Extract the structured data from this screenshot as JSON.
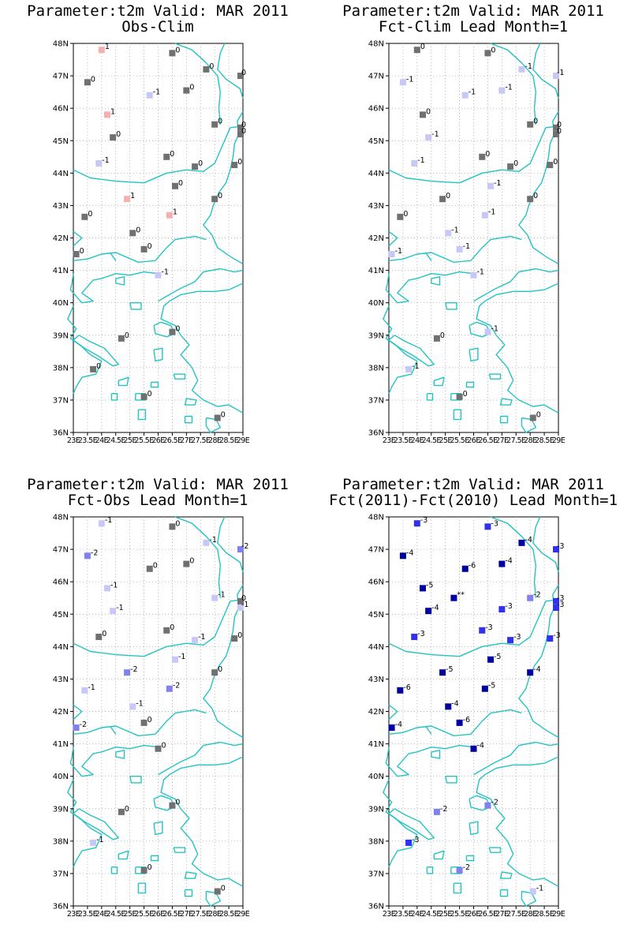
{
  "figure": {
    "axes": {
      "lat_labels": [
        "48N",
        "47N",
        "46N",
        "45N",
        "44N",
        "43N",
        "42N",
        "41N",
        "40N",
        "39N",
        "38N",
        "37N",
        "36N"
      ],
      "lon_labels": [
        "23E",
        "23.5E",
        "24E",
        "24.5E",
        "25E",
        "25.5E",
        "26E",
        "26.5E",
        "27E",
        "27.5E",
        "28E",
        "28.5E",
        "29E"
      ],
      "lat_range": [
        36,
        48
      ],
      "lon_range": [
        23,
        29
      ],
      "grid": "dotted"
    },
    "colors": {
      "coast": "#22c4c4",
      "grid": "#9a9a9a",
      "zero": "#707070",
      "plus1": "#f5b0b0",
      "minus1": "#c8c8f8",
      "minus2": "#8080f0",
      "minus3": "#3030f0",
      "minus4plus": "#0000a0",
      "plus2": "#7070e8",
      "plus3": "#3030f0",
      "missing": "#0000a0"
    },
    "panels": [
      {
        "title_line1": "Parameter:t2m Valid: MAR 2011",
        "title_line2": "Obs-Clim",
        "stations": [
          {
            "lon": 24.0,
            "lat": 47.8,
            "label": "1",
            "cls": "plus1"
          },
          {
            "lon": 26.5,
            "lat": 47.7,
            "label": "0",
            "cls": "zero"
          },
          {
            "lon": 27.7,
            "lat": 47.2,
            "label": "0",
            "cls": "zero"
          },
          {
            "lon": 29.0,
            "lat": 47.0,
            "label": "0",
            "cls": "zero"
          },
          {
            "lon": 23.5,
            "lat": 46.8,
            "label": "0",
            "cls": "zero"
          },
          {
            "lon": 27.0,
            "lat": 46.55,
            "label": "0",
            "cls": "zero"
          },
          {
            "lon": 25.7,
            "lat": 46.4,
            "label": "-1",
            "cls": "minus1"
          },
          {
            "lon": 24.2,
            "lat": 45.8,
            "label": "1",
            "cls": "plus1"
          },
          {
            "lon": 28.0,
            "lat": 45.5,
            "label": "0",
            "cls": "zero"
          },
          {
            "lon": 29.0,
            "lat": 45.4,
            "label": "0",
            "cls": "zero"
          },
          {
            "lon": 29.0,
            "lat": 45.2,
            "label": "0",
            "cls": "zero"
          },
          {
            "lon": 24.4,
            "lat": 45.1,
            "label": "0",
            "cls": "zero"
          },
          {
            "lon": 26.3,
            "lat": 44.5,
            "label": "0",
            "cls": "zero"
          },
          {
            "lon": 23.9,
            "lat": 44.3,
            "label": "-1",
            "cls": "minus1"
          },
          {
            "lon": 27.3,
            "lat": 44.2,
            "label": "0",
            "cls": "zero"
          },
          {
            "lon": 28.7,
            "lat": 44.25,
            "label": "0",
            "cls": "zero"
          },
          {
            "lon": 26.6,
            "lat": 43.6,
            "label": "0",
            "cls": "zero"
          },
          {
            "lon": 28.0,
            "lat": 43.2,
            "label": "0",
            "cls": "zero"
          },
          {
            "lon": 24.9,
            "lat": 43.2,
            "label": "1",
            "cls": "plus1"
          },
          {
            "lon": 23.4,
            "lat": 42.65,
            "label": "0",
            "cls": "zero"
          },
          {
            "lon": 26.4,
            "lat": 42.7,
            "label": "1",
            "cls": "plus1"
          },
          {
            "lon": 25.1,
            "lat": 42.15,
            "label": "0",
            "cls": "zero"
          },
          {
            "lon": 25.5,
            "lat": 41.65,
            "label": "0",
            "cls": "zero"
          },
          {
            "lon": 23.1,
            "lat": 41.5,
            "label": "0",
            "cls": "zero"
          },
          {
            "lon": 26.0,
            "lat": 40.85,
            "label": "-1",
            "cls": "minus1"
          },
          {
            "lon": 24.7,
            "lat": 38.9,
            "label": "0",
            "cls": "zero"
          },
          {
            "lon": 26.5,
            "lat": 39.1,
            "label": "0",
            "cls": "zero"
          },
          {
            "lon": 23.7,
            "lat": 37.95,
            "label": "0",
            "cls": "zero"
          },
          {
            "lon": 25.5,
            "lat": 37.1,
            "label": "0",
            "cls": "zero"
          },
          {
            "lon": 28.1,
            "lat": 36.45,
            "label": "0",
            "cls": "zero"
          }
        ]
      },
      {
        "title_line1": "Parameter:t2m Valid: MAR 2011",
        "title_line2": "Fct-Clim Lead Month=1",
        "stations": [
          {
            "lon": 24.0,
            "lat": 47.8,
            "label": "0",
            "cls": "zero"
          },
          {
            "lon": 26.5,
            "lat": 47.7,
            "label": "0",
            "cls": "zero"
          },
          {
            "lon": 27.7,
            "lat": 47.2,
            "label": "-1",
            "cls": "minus1"
          },
          {
            "lon": 29.0,
            "lat": 47.0,
            "label": "-1",
            "cls": "minus1"
          },
          {
            "lon": 23.5,
            "lat": 46.8,
            "label": "-1",
            "cls": "minus1"
          },
          {
            "lon": 27.0,
            "lat": 46.55,
            "label": "-1",
            "cls": "minus1"
          },
          {
            "lon": 25.7,
            "lat": 46.4,
            "label": "-1",
            "cls": "minus1"
          },
          {
            "lon": 24.2,
            "lat": 45.8,
            "label": "0",
            "cls": "zero"
          },
          {
            "lon": 28.0,
            "lat": 45.5,
            "label": "0",
            "cls": "zero"
          },
          {
            "lon": 29.0,
            "lat": 45.4,
            "label": "0",
            "cls": "zero"
          },
          {
            "lon": 29.0,
            "lat": 45.2,
            "label": "0",
            "cls": "zero"
          },
          {
            "lon": 24.4,
            "lat": 45.1,
            "label": "-1",
            "cls": "minus1"
          },
          {
            "lon": 26.3,
            "lat": 44.5,
            "label": "0",
            "cls": "zero"
          },
          {
            "lon": 23.9,
            "lat": 44.3,
            "label": "-1",
            "cls": "minus1"
          },
          {
            "lon": 27.3,
            "lat": 44.2,
            "label": "0",
            "cls": "zero"
          },
          {
            "lon": 28.7,
            "lat": 44.25,
            "label": "0",
            "cls": "zero"
          },
          {
            "lon": 26.6,
            "lat": 43.6,
            "label": "-1",
            "cls": "minus1"
          },
          {
            "lon": 28.0,
            "lat": 43.2,
            "label": "0",
            "cls": "zero"
          },
          {
            "lon": 24.9,
            "lat": 43.2,
            "label": "0",
            "cls": "zero"
          },
          {
            "lon": 23.4,
            "lat": 42.65,
            "label": "0",
            "cls": "zero"
          },
          {
            "lon": 26.4,
            "lat": 42.7,
            "label": "-1",
            "cls": "minus1"
          },
          {
            "lon": 25.1,
            "lat": 42.15,
            "label": "-1",
            "cls": "minus1"
          },
          {
            "lon": 25.5,
            "lat": 41.65,
            "label": "-1",
            "cls": "minus1"
          },
          {
            "lon": 23.1,
            "lat": 41.5,
            "label": "-1",
            "cls": "minus1"
          },
          {
            "lon": 26.0,
            "lat": 40.85,
            "label": "-1",
            "cls": "minus1"
          },
          {
            "lon": 24.7,
            "lat": 38.9,
            "label": "0",
            "cls": "zero"
          },
          {
            "lon": 26.5,
            "lat": 39.1,
            "label": "-1",
            "cls": "minus1"
          },
          {
            "lon": 23.7,
            "lat": 37.95,
            "label": "-1",
            "cls": "minus1"
          },
          {
            "lon": 25.5,
            "lat": 37.1,
            "label": "0",
            "cls": "zero"
          },
          {
            "lon": 28.1,
            "lat": 36.45,
            "label": "0",
            "cls": "zero"
          }
        ]
      },
      {
        "title_line1": "Parameter:t2m Valid: MAR 2011",
        "title_line2": "Fct-Obs Lead Month=1",
        "stations": [
          {
            "lon": 24.0,
            "lat": 47.8,
            "label": "-1",
            "cls": "minus1"
          },
          {
            "lon": 26.5,
            "lat": 47.7,
            "label": "0",
            "cls": "zero"
          },
          {
            "lon": 27.7,
            "lat": 47.2,
            "label": "-1",
            "cls": "minus1"
          },
          {
            "lon": 29.0,
            "lat": 47.0,
            "label": "-2",
            "cls": "minus2"
          },
          {
            "lon": 23.5,
            "lat": 46.8,
            "label": "-2",
            "cls": "minus2"
          },
          {
            "lon": 27.0,
            "lat": 46.55,
            "label": "0",
            "cls": "zero"
          },
          {
            "lon": 25.7,
            "lat": 46.4,
            "label": "0",
            "cls": "zero"
          },
          {
            "lon": 24.2,
            "lat": 45.8,
            "label": "-1",
            "cls": "minus1"
          },
          {
            "lon": 28.0,
            "lat": 45.5,
            "label": "-1",
            "cls": "minus1"
          },
          {
            "lon": 29.0,
            "lat": 45.4,
            "label": "0",
            "cls": "zero"
          },
          {
            "lon": 29.0,
            "lat": 45.2,
            "label": "-1",
            "cls": "minus1"
          },
          {
            "lon": 24.4,
            "lat": 45.1,
            "label": "-1",
            "cls": "minus1"
          },
          {
            "lon": 26.3,
            "lat": 44.5,
            "label": "0",
            "cls": "zero"
          },
          {
            "lon": 23.9,
            "lat": 44.3,
            "label": "0",
            "cls": "zero"
          },
          {
            "lon": 27.3,
            "lat": 44.2,
            "label": "-1",
            "cls": "minus1"
          },
          {
            "lon": 28.7,
            "lat": 44.25,
            "label": "0",
            "cls": "zero"
          },
          {
            "lon": 26.6,
            "lat": 43.6,
            "label": "-1",
            "cls": "minus1"
          },
          {
            "lon": 28.0,
            "lat": 43.2,
            "label": "0",
            "cls": "zero"
          },
          {
            "lon": 24.9,
            "lat": 43.2,
            "label": "-2",
            "cls": "minus2"
          },
          {
            "lon": 23.4,
            "lat": 42.65,
            "label": "-1",
            "cls": "minus1"
          },
          {
            "lon": 26.4,
            "lat": 42.7,
            "label": "-2",
            "cls": "minus2"
          },
          {
            "lon": 25.1,
            "lat": 42.15,
            "label": "-1",
            "cls": "minus1"
          },
          {
            "lon": 25.5,
            "lat": 41.65,
            "label": "0",
            "cls": "zero"
          },
          {
            "lon": 23.1,
            "lat": 41.5,
            "label": "-2",
            "cls": "minus2"
          },
          {
            "lon": 26.0,
            "lat": 40.85,
            "label": "0",
            "cls": "zero"
          },
          {
            "lon": 24.7,
            "lat": 38.9,
            "label": "0",
            "cls": "zero"
          },
          {
            "lon": 26.5,
            "lat": 39.1,
            "label": "0",
            "cls": "zero"
          },
          {
            "lon": 23.7,
            "lat": 37.95,
            "label": "-1",
            "cls": "minus1"
          },
          {
            "lon": 25.5,
            "lat": 37.1,
            "label": "0",
            "cls": "zero"
          },
          {
            "lon": 28.1,
            "lat": 36.45,
            "label": "0",
            "cls": "zero"
          }
        ]
      },
      {
        "title_line1": "Parameter:t2m Valid: MAR 2011",
        "title_line2": "Fct(2011)-Fct(2010) Lead Month=1",
        "stations": [
          {
            "lon": 24.0,
            "lat": 47.8,
            "label": "-3",
            "cls": "minus3"
          },
          {
            "lon": 26.5,
            "lat": 47.7,
            "label": "-3",
            "cls": "minus3"
          },
          {
            "lon": 27.7,
            "lat": 47.2,
            "label": "-4",
            "cls": "minus4plus"
          },
          {
            "lon": 29.0,
            "lat": 47.0,
            "label": "-3",
            "cls": "minus3"
          },
          {
            "lon": 23.5,
            "lat": 46.8,
            "label": "-4",
            "cls": "minus4plus"
          },
          {
            "lon": 27.0,
            "lat": 46.55,
            "label": "-4",
            "cls": "minus4plus"
          },
          {
            "lon": 25.7,
            "lat": 46.4,
            "label": "-6",
            "cls": "minus4plus"
          },
          {
            "lon": 24.2,
            "lat": 45.8,
            "label": "-5",
            "cls": "minus4plus"
          },
          {
            "lon": 25.3,
            "lat": 45.5,
            "label": "**",
            "cls": "missing"
          },
          {
            "lon": 28.0,
            "lat": 45.5,
            "label": "-2",
            "cls": "minus2"
          },
          {
            "lon": 29.0,
            "lat": 45.4,
            "label": "-3",
            "cls": "minus3"
          },
          {
            "lon": 29.0,
            "lat": 45.2,
            "label": "-3",
            "cls": "minus3"
          },
          {
            "lon": 24.4,
            "lat": 45.1,
            "label": "-4",
            "cls": "minus4plus"
          },
          {
            "lon": 27.0,
            "lat": 45.15,
            "label": "-3",
            "cls": "minus3"
          },
          {
            "lon": 26.3,
            "lat": 44.5,
            "label": "-3",
            "cls": "minus3"
          },
          {
            "lon": 23.9,
            "lat": 44.3,
            "label": "-3",
            "cls": "minus3"
          },
          {
            "lon": 27.3,
            "lat": 44.2,
            "label": "-3",
            "cls": "minus3"
          },
          {
            "lon": 28.7,
            "lat": 44.25,
            "label": "-3",
            "cls": "minus3"
          },
          {
            "lon": 26.6,
            "lat": 43.6,
            "label": "-5",
            "cls": "minus4plus"
          },
          {
            "lon": 28.0,
            "lat": 43.2,
            "label": "-4",
            "cls": "minus4plus"
          },
          {
            "lon": 24.9,
            "lat": 43.2,
            "label": "-5",
            "cls": "minus4plus"
          },
          {
            "lon": 23.4,
            "lat": 42.65,
            "label": "-6",
            "cls": "minus4plus"
          },
          {
            "lon": 26.4,
            "lat": 42.7,
            "label": "-5",
            "cls": "minus4plus"
          },
          {
            "lon": 25.1,
            "lat": 42.15,
            "label": "-4",
            "cls": "minus4plus"
          },
          {
            "lon": 25.5,
            "lat": 41.65,
            "label": "-6",
            "cls": "minus4plus"
          },
          {
            "lon": 23.1,
            "lat": 41.5,
            "label": "-4",
            "cls": "minus4plus"
          },
          {
            "lon": 26.0,
            "lat": 40.85,
            "label": "-4",
            "cls": "minus4plus"
          },
          {
            "lon": 24.7,
            "lat": 38.9,
            "label": "-2",
            "cls": "minus2"
          },
          {
            "lon": 26.5,
            "lat": 39.1,
            "label": "-2",
            "cls": "minus2"
          },
          {
            "lon": 23.7,
            "lat": 37.95,
            "label": "-3",
            "cls": "minus3"
          },
          {
            "lon": 25.5,
            "lat": 37.1,
            "label": "-2",
            "cls": "minus2"
          },
          {
            "lon": 28.1,
            "lat": 36.45,
            "label": "-1",
            "cls": "minus1"
          }
        ]
      }
    ]
  }
}
